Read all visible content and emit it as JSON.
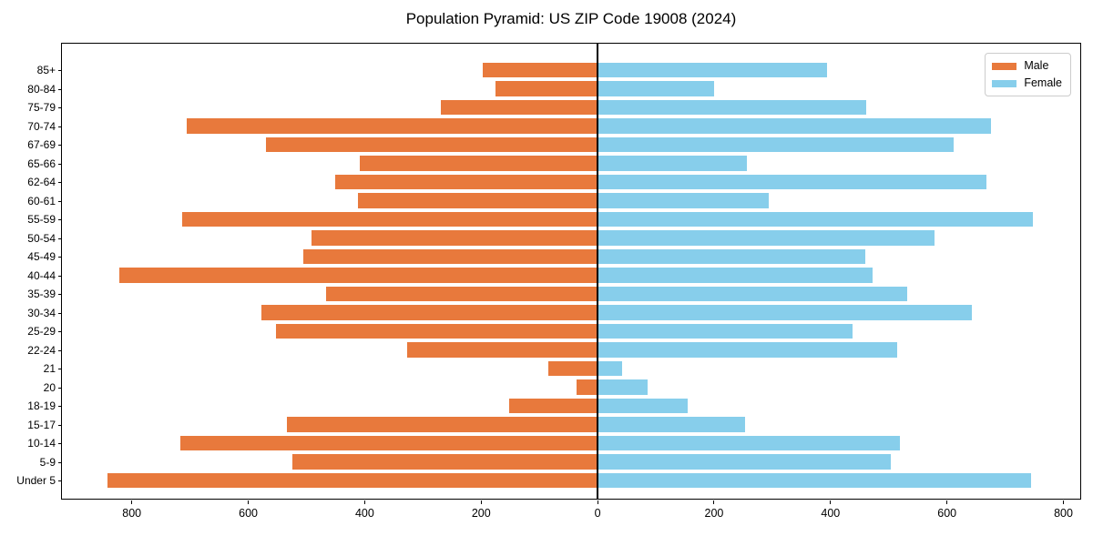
{
  "title": "Population Pyramid: US ZIP Code 19008 (2024)",
  "legend": {
    "male_label": "Male",
    "female_label": "Female"
  },
  "colors": {
    "male": "#E8793C",
    "female": "#87CEEB",
    "axis": "#000000",
    "legend_border": "#cccccc",
    "background": "#ffffff"
  },
  "chart_data": {
    "type": "bar",
    "orientation": "horizontal",
    "subtype": "population-pyramid",
    "title": "Population Pyramid: US ZIP Code 19008 (2024)",
    "categories_top_to_bottom": [
      "85+",
      "80-84",
      "75-79",
      "70-74",
      "67-69",
      "65-66",
      "62-64",
      "60-61",
      "55-59",
      "50-54",
      "45-49",
      "40-44",
      "35-39",
      "30-34",
      "25-29",
      "22-24",
      "21",
      "20",
      "18-19",
      "15-17",
      "10-14",
      "5-9",
      "Under 5"
    ],
    "series": [
      {
        "name": "Male",
        "side": "left",
        "color": "#E8793C",
        "values": [
          197,
          175,
          269,
          705,
          570,
          409,
          450,
          412,
          714,
          492,
          506,
          822,
          467,
          577,
          553,
          327,
          84,
          36,
          152,
          534,
          717,
          525,
          842
        ]
      },
      {
        "name": "Female",
        "side": "right",
        "color": "#87CEEB",
        "values": [
          394,
          200,
          461,
          675,
          612,
          256,
          667,
          294,
          748,
          578,
          460,
          473,
          531,
          642,
          438,
          514,
          42,
          86,
          155,
          253,
          519,
          503,
          744
        ]
      }
    ],
    "x_axis": {
      "tick_values": [
        -800,
        -600,
        -400,
        -200,
        0,
        200,
        400,
        600,
        800
      ],
      "tick_labels": [
        "800",
        "600",
        "400",
        "200",
        "0",
        "200",
        "400",
        "600",
        "800"
      ],
      "xlim": [
        -920,
        832
      ]
    },
    "y_axis": {
      "tick_labels": [
        "85+",
        "80-84",
        "75-79",
        "70-74",
        "67-69",
        "65-66",
        "62-64",
        "60-61",
        "55-59",
        "50-54",
        "45-49",
        "40-44",
        "35-39",
        "30-34",
        "25-29",
        "22-24",
        "21",
        "20",
        "18-19",
        "15-17",
        "10-14",
        "5-9",
        "Under 5"
      ]
    },
    "legend": {
      "position": "upper right",
      "entries": [
        "Male",
        "Female"
      ]
    },
    "grid": false,
    "zero_reference_line": true
  }
}
